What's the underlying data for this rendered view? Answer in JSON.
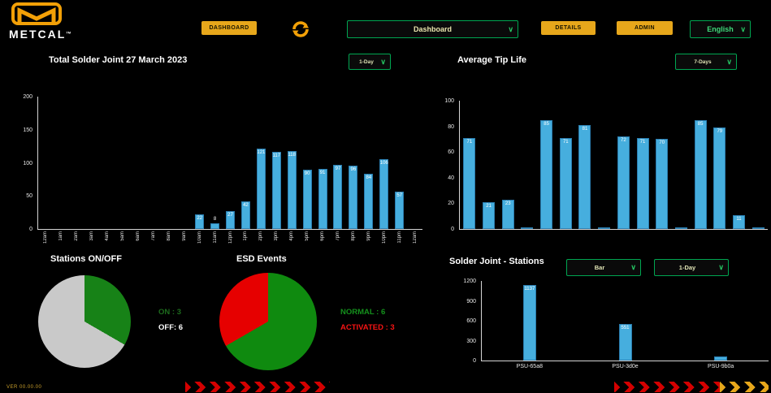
{
  "app": {
    "brand": "METCAL",
    "brand_tm": "TM",
    "version_label": "VER  00.00.00"
  },
  "header": {
    "dashboard_button": "DASHBOARD",
    "page_dropdown": "Dashboard",
    "details_button": "DETAILS",
    "admin_button": "ADMIN",
    "language_dropdown": "English"
  },
  "sections": {
    "left_chart_title": "Total Solder Joint 27 March 2023",
    "left_chart_period": "1-Day",
    "right_chart_title": "Average Tip Life",
    "right_chart_period": "7-Days",
    "stations_title": "Stations ON/OFF",
    "esd_title": "ESD Events",
    "stations_chart_title": "Solder Joint - Stations",
    "stations_chart_type": "Bar",
    "stations_chart_period": "1-Day"
  },
  "colors": {
    "accent_yellow": "#e7a71b",
    "accent_green_border": "#00a651",
    "bar_blue": "#46aede",
    "pie_gray": "#c9c9c9",
    "pie_green": "#178217",
    "pie_red": "#e60000"
  },
  "chart_data": [
    {
      "id": "solder_joint_hourly",
      "type": "bar",
      "title": "Total Solder Joint 27 March 2023",
      "period": "1-Day",
      "categories": [
        "12am",
        "1am",
        "2am",
        "3am",
        "4am",
        "5am",
        "6am",
        "7am",
        "8am",
        "9am",
        "10am",
        "11am",
        "12pm",
        "1pm",
        "2pm",
        "3pm",
        "4pm",
        "5pm",
        "6pm",
        "7pm",
        "8pm",
        "9pm",
        "10pm",
        "11pm",
        "12am"
      ],
      "values": [
        0,
        0,
        0,
        0,
        0,
        0,
        0,
        0,
        0,
        0,
        22,
        8,
        27,
        42,
        121,
        117,
        118,
        90,
        91,
        97,
        96,
        84,
        106,
        57,
        0
      ],
      "labels": [
        "",
        "",
        "",
        "",
        "",
        "",
        "",
        "",
        "",
        "",
        "22",
        "8",
        "27",
        "42",
        "121",
        "117",
        "118",
        "90",
        "91",
        "97",
        "96",
        "84",
        "106",
        "57",
        ""
      ],
      "ylim": [
        0,
        200
      ],
      "yticks": [
        0,
        50,
        100,
        150,
        200
      ]
    },
    {
      "id": "average_tip_life",
      "type": "bar",
      "title": "Average Tip Life",
      "period": "7-Days",
      "categories": [
        "",
        "",
        "",
        "",
        "",
        "",
        "",
        "",
        "",
        "",
        "",
        "",
        "",
        "",
        "",
        ""
      ],
      "values": [
        71,
        21,
        23,
        1,
        85,
        71,
        81,
        1,
        72,
        71,
        70,
        1,
        85,
        79,
        11,
        1
      ],
      "labels": [
        "71",
        "21",
        "23",
        "",
        "85",
        "71",
        "81",
        "",
        "72",
        "71",
        "70",
        "",
        "85",
        "79",
        "11",
        ""
      ],
      "ylim": [
        0,
        100
      ],
      "yticks": [
        0,
        20,
        40,
        60,
        80,
        100
      ]
    },
    {
      "id": "stations_on_off",
      "type": "pie",
      "title": "Stations ON/OFF",
      "slices": [
        {
          "label": "ON",
          "value": 3,
          "color": "#178217"
        },
        {
          "label": "OFF",
          "value": 6,
          "color": "#c9c9c9"
        }
      ],
      "legend": [
        {
          "text": "ON : 3",
          "color": "#1d6b1d"
        },
        {
          "text": "OFF: 6",
          "color": "#ffffff"
        }
      ]
    },
    {
      "id": "esd_events",
      "type": "pie",
      "title": "ESD Events",
      "slices": [
        {
          "label": "NORMAL",
          "value": 6,
          "color": "#0f8a0f"
        },
        {
          "label": "ACTIVATED",
          "value": 3,
          "color": "#e60000"
        }
      ],
      "legend": [
        {
          "text": "NORMAL : 6",
          "color": "#14911c"
        },
        {
          "text": "ACTIVATED : 3",
          "color": "#f71414"
        }
      ]
    },
    {
      "id": "solder_joint_stations",
      "type": "bar",
      "title": "Solder Joint - Stations",
      "chart_type": "Bar",
      "period": "1-Day",
      "categories": [
        "PSU-65a8",
        "PSU-3d0e",
        "PSU-9b0a"
      ],
      "values": [
        1137,
        551,
        60
      ],
      "labels": [
        "1137",
        "551",
        ""
      ],
      "ylim": [
        0,
        1200
      ],
      "yticks": [
        0,
        300,
        600,
        900,
        1200
      ]
    }
  ]
}
